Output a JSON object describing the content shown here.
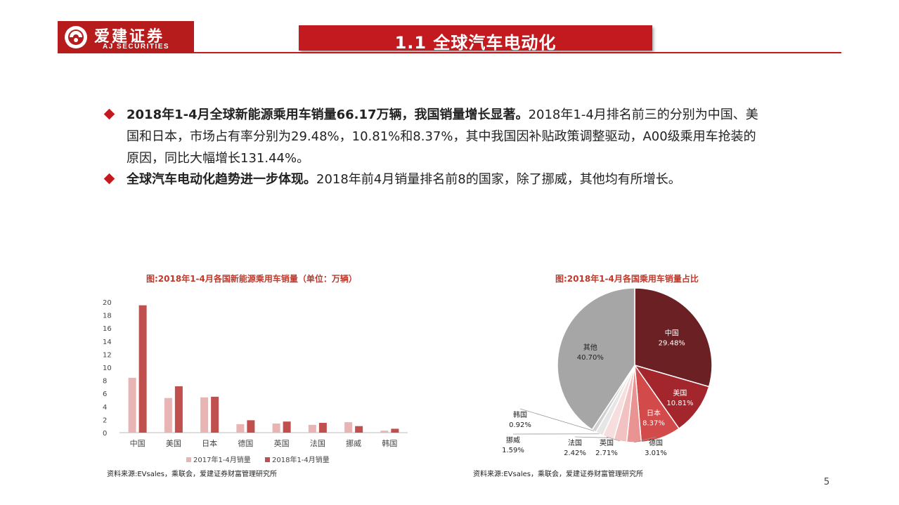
{
  "header": {
    "logo_cn": "爱建证券",
    "logo_en": "AJ SECURITIES",
    "title": "1.1 全球汽车电动化"
  },
  "bullets": [
    {
      "bold": "2018年1-4月全球新能源乘用车销量66.17万辆，我国销量增长显著。",
      "text": "2018年1-4月排名前三的分别为中国、美国和日本，市场占有率分别为29.48%，10.81%和8.37%，其中我国因补贴政策调整驱动，A00级乘用车抢装的原因，同比大幅增长131.44%。"
    },
    {
      "bold": "全球汽车电动化趋势进一步体现。",
      "text": "2018年前4月销量排名前8的国家，除了挪威，其他均有所增长。"
    }
  ],
  "bar_chart": {
    "title": "图:2018年1-4月各国新能源乘用车销量（单位：万辆）",
    "source": "资料来源:EVsales，乘联会，爱建证券财富管理研究所"
  },
  "pie_chart": {
    "title": "图:2018年1-4月各国乘用车销量占比",
    "source": "资料来源:EVsales，乘联会，爱建证券财富管理研究所"
  },
  "page_number": "5",
  "chart_data": [
    {
      "type": "bar",
      "title": "图:2018年1-4月各国新能源乘用车销量（单位：万辆）",
      "categories": [
        "中国",
        "美国",
        "日本",
        "德国",
        "英国",
        "法国",
        "挪威",
        "韩国"
      ],
      "series": [
        {
          "name": "2017年1-4月销量",
          "color": "#e8b4b4",
          "values": [
            8.4,
            5.3,
            5.4,
            1.3,
            1.4,
            1.2,
            1.6,
            0.3
          ]
        },
        {
          "name": "2018年1-4月销量",
          "color": "#c0504d",
          "values": [
            19.5,
            7.1,
            5.5,
            1.9,
            1.7,
            1.5,
            1.0,
            0.6
          ]
        }
      ],
      "yticks": [
        "0",
        "2",
        "4",
        "6",
        "8",
        "10",
        "12",
        "14",
        "16",
        "18",
        "20"
      ],
      "ylim": [
        0,
        20
      ],
      "legend": "bottom"
    },
    {
      "type": "pie",
      "title": "图:2018年1-4月各国乘用车销量占比",
      "slices": [
        {
          "label": "中国",
          "value": 29.48,
          "text": "29.48%",
          "color": "#6b2024"
        },
        {
          "label": "美国",
          "value": 10.81,
          "text": "10.81%",
          "color": "#a3262c"
        },
        {
          "label": "日本",
          "value": 8.37,
          "text": "8.37%",
          "color": "#d24a4a"
        },
        {
          "label": "德国",
          "value": 3.01,
          "text": "3.01%",
          "color": "#e99393"
        },
        {
          "label": "英国",
          "value": 2.71,
          "text": "2.71%",
          "color": "#f2c1c1"
        },
        {
          "label": "法国",
          "value": 2.42,
          "text": "2.42%",
          "color": "#f7dede"
        },
        {
          "label": "挪威",
          "value": 1.59,
          "text": "1.59%",
          "color": "#e6e6e6"
        },
        {
          "label": "韩国",
          "value": 0.92,
          "text": "0.92%",
          "color": "#d0d0d0"
        },
        {
          "label": "其他",
          "value": 40.7,
          "text": "40.70%",
          "color": "#a6a6a6"
        }
      ]
    }
  ]
}
